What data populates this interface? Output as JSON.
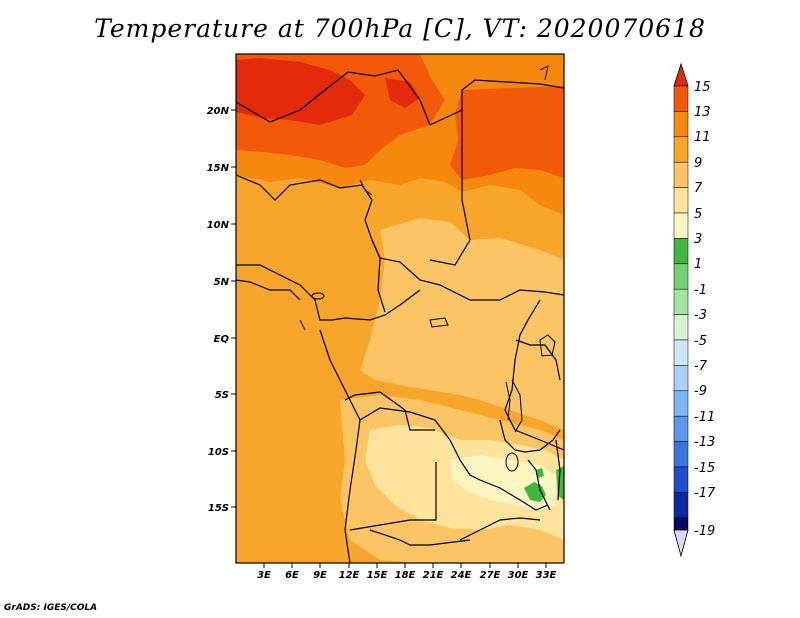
{
  "title": "Temperature at 700hPa [C], VT: 2020070618",
  "footer": "GrADS: IGES/COLA",
  "map": {
    "lat_labels": [
      "20N",
      "15N",
      "10N",
      "5N",
      "EQ",
      "5S",
      "10S",
      "15S"
    ],
    "lon_labels": [
      "3E",
      "6E",
      "9E",
      "12E",
      "15E",
      "18E",
      "21E",
      "24E",
      "27E",
      "30E",
      "33E"
    ]
  },
  "colorbar": {
    "labels": [
      "15",
      "13",
      "11",
      "9",
      "7",
      "5",
      "3",
      "1",
      "-1",
      "-3",
      "-5",
      "-7",
      "-9",
      "-11",
      "-13",
      "-15",
      "-17",
      "-19"
    ],
    "colors": [
      "#e32a0b",
      "#f25a0a",
      "#f7880f",
      "#f8a52b",
      "#fbc565",
      "#fde39c",
      "#fdf6c0",
      "#40b840",
      "#72d072",
      "#a0e6a0",
      "#d4f4d4",
      "#cde6fb",
      "#a8d2fa",
      "#7cb6f4",
      "#5a97ec",
      "#3c74df",
      "#1f4fce",
      "#0c2aa6",
      "#080a62",
      "#d8d8f4"
    ]
  }
}
